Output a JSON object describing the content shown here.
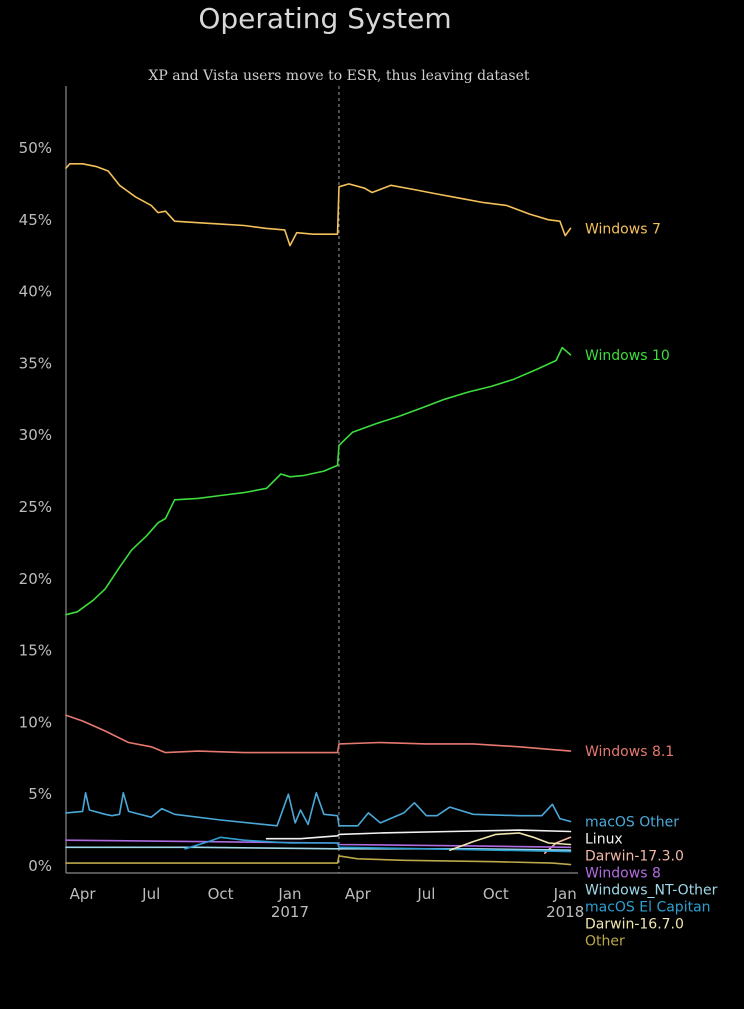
{
  "chart_data": {
    "type": "line",
    "title": "Operating System",
    "subtitle": "",
    "xlabel": "",
    "ylabel": "",
    "ylim": [
      0,
      55
    ],
    "xlim": [
      "2016-03-10",
      "2018-01-18"
    ],
    "grid": false,
    "legend": "right-end-labels",
    "y_ticks": [
      0,
      5,
      10,
      15,
      20,
      25,
      30,
      35,
      40,
      45,
      50
    ],
    "y_tick_labels": [
      "0%",
      "5%",
      "10%",
      "15%",
      "20%",
      "25%",
      "30%",
      "35%",
      "40%",
      "45%",
      "50%"
    ],
    "x_ticks": [
      {
        "date": "2016-04-01",
        "label": "Apr",
        "label2": ""
      },
      {
        "date": "2016-07-01",
        "label": "Jul",
        "label2": ""
      },
      {
        "date": "2016-10-01",
        "label": "Oct",
        "label2": ""
      },
      {
        "date": "2017-01-01",
        "label": "Jan",
        "label2": "2017"
      },
      {
        "date": "2017-04-01",
        "label": "Apr",
        "label2": ""
      },
      {
        "date": "2017-07-01",
        "label": "Jul",
        "label2": ""
      },
      {
        "date": "2017-10-01",
        "label": "Oct",
        "label2": ""
      },
      {
        "date": "2018-01-01",
        "label": "Jan",
        "label2": "2018"
      }
    ],
    "annotation": {
      "date": "2017-03-07",
      "text": "XP and Vista users move to ESR, thus leaving dataset"
    },
    "series": [
      {
        "name": "Windows 7",
        "color": "#f3c05a",
        "points": [
          [
            "2016-03-10",
            48.6
          ],
          [
            "2016-03-15",
            48.9
          ],
          [
            "2016-04-01",
            48.9
          ],
          [
            "2016-04-20",
            48.7
          ],
          [
            "2016-05-05",
            48.4
          ],
          [
            "2016-05-20",
            47.4
          ],
          [
            "2016-06-10",
            46.6
          ],
          [
            "2016-07-01",
            46.0
          ],
          [
            "2016-07-10",
            45.5
          ],
          [
            "2016-07-20",
            45.6
          ],
          [
            "2016-08-01",
            44.9
          ],
          [
            "2016-09-01",
            44.8
          ],
          [
            "2016-10-01",
            44.7
          ],
          [
            "2016-11-01",
            44.6
          ],
          [
            "2016-12-01",
            44.4
          ],
          [
            "2016-12-25",
            44.3
          ],
          [
            "2017-01-01",
            43.2
          ],
          [
            "2017-01-10",
            44.1
          ],
          [
            "2017-02-01",
            44.0
          ],
          [
            "2017-03-05",
            44.0
          ],
          [
            "2017-03-07",
            47.3
          ],
          [
            "2017-03-20",
            47.5
          ],
          [
            "2017-04-10",
            47.2
          ],
          [
            "2017-04-20",
            46.9
          ],
          [
            "2017-05-15",
            47.4
          ],
          [
            "2017-06-15",
            47.1
          ],
          [
            "2017-07-15",
            46.8
          ],
          [
            "2017-08-15",
            46.5
          ],
          [
            "2017-09-15",
            46.2
          ],
          [
            "2017-10-15",
            46.0
          ],
          [
            "2017-11-15",
            45.4
          ],
          [
            "2017-12-10",
            45.0
          ],
          [
            "2017-12-25",
            44.9
          ],
          [
            "2018-01-01",
            43.9
          ],
          [
            "2018-01-08",
            44.4
          ]
        ]
      },
      {
        "name": "Windows 10",
        "color": "#3ddc3d",
        "points": [
          [
            "2016-03-10",
            17.5
          ],
          [
            "2016-03-25",
            17.7
          ],
          [
            "2016-04-15",
            18.5
          ],
          [
            "2016-05-01",
            19.3
          ],
          [
            "2016-05-20",
            20.8
          ],
          [
            "2016-06-05",
            22.0
          ],
          [
            "2016-06-25",
            23.0
          ],
          [
            "2016-07-10",
            23.9
          ],
          [
            "2016-07-20",
            24.2
          ],
          [
            "2016-08-01",
            25.5
          ],
          [
            "2016-09-01",
            25.6
          ],
          [
            "2016-10-01",
            25.8
          ],
          [
            "2016-11-01",
            26.0
          ],
          [
            "2016-12-01",
            26.3
          ],
          [
            "2016-12-20",
            27.3
          ],
          [
            "2017-01-01",
            27.1
          ],
          [
            "2017-01-20",
            27.2
          ],
          [
            "2017-02-15",
            27.5
          ],
          [
            "2017-03-05",
            27.9
          ],
          [
            "2017-03-07",
            29.3
          ],
          [
            "2017-03-25",
            30.2
          ],
          [
            "2017-04-25",
            30.8
          ],
          [
            "2017-05-25",
            31.3
          ],
          [
            "2017-06-25",
            31.9
          ],
          [
            "2017-07-25",
            32.5
          ],
          [
            "2017-08-25",
            33.0
          ],
          [
            "2017-09-25",
            33.4
          ],
          [
            "2017-10-25",
            33.9
          ],
          [
            "2017-11-25",
            34.6
          ],
          [
            "2017-12-20",
            35.2
          ],
          [
            "2017-12-28",
            36.1
          ],
          [
            "2018-01-08",
            35.6
          ]
        ]
      },
      {
        "name": "Windows 8.1",
        "color": "#e6796f",
        "points": [
          [
            "2016-03-10",
            10.5
          ],
          [
            "2016-04-01",
            10.1
          ],
          [
            "2016-05-01",
            9.4
          ],
          [
            "2016-06-01",
            8.6
          ],
          [
            "2016-07-01",
            8.3
          ],
          [
            "2016-07-20",
            7.9
          ],
          [
            "2016-09-01",
            8.0
          ],
          [
            "2016-11-01",
            7.9
          ],
          [
            "2017-01-01",
            7.9
          ],
          [
            "2017-03-05",
            7.9
          ],
          [
            "2017-03-07",
            8.5
          ],
          [
            "2017-05-01",
            8.6
          ],
          [
            "2017-07-01",
            8.5
          ],
          [
            "2017-09-01",
            8.5
          ],
          [
            "2017-11-01",
            8.3
          ],
          [
            "2018-01-08",
            8.0
          ]
        ]
      },
      {
        "name": "macOS Other",
        "color": "#4aa8d8",
        "points": [
          [
            "2016-03-10",
            3.7
          ],
          [
            "2016-04-01",
            3.8
          ],
          [
            "2016-04-05",
            5.1
          ],
          [
            "2016-04-10",
            3.9
          ],
          [
            "2016-05-01",
            3.6
          ],
          [
            "2016-05-10",
            3.5
          ],
          [
            "2016-05-20",
            3.6
          ],
          [
            "2016-05-25",
            5.1
          ],
          [
            "2016-06-01",
            3.8
          ],
          [
            "2016-07-01",
            3.4
          ],
          [
            "2016-07-15",
            4.0
          ],
          [
            "2016-08-01",
            3.6
          ],
          [
            "2016-10-01",
            3.2
          ],
          [
            "2016-12-15",
            2.8
          ],
          [
            "2016-12-30",
            5.0
          ],
          [
            "2017-01-08",
            3.0
          ],
          [
            "2017-01-15",
            3.9
          ],
          [
            "2017-01-25",
            2.9
          ],
          [
            "2017-02-05",
            5.1
          ],
          [
            "2017-02-15",
            3.6
          ],
          [
            "2017-03-05",
            3.5
          ],
          [
            "2017-03-07",
            2.8
          ],
          [
            "2017-04-01",
            2.8
          ],
          [
            "2017-04-15",
            3.7
          ],
          [
            "2017-05-01",
            3.0
          ],
          [
            "2017-06-01",
            3.7
          ],
          [
            "2017-06-15",
            4.4
          ],
          [
            "2017-07-01",
            3.5
          ],
          [
            "2017-07-15",
            3.5
          ],
          [
            "2017-08-01",
            4.1
          ],
          [
            "2017-09-01",
            3.6
          ],
          [
            "2017-11-01",
            3.5
          ],
          [
            "2017-12-01",
            3.5
          ],
          [
            "2017-12-15",
            4.3
          ],
          [
            "2017-12-25",
            3.3
          ],
          [
            "2018-01-08",
            3.1
          ]
        ]
      },
      {
        "name": "Linux",
        "color": "#f2f2f2",
        "points": [
          [
            "2016-12-01",
            1.9
          ],
          [
            "2017-01-15",
            1.9
          ],
          [
            "2017-03-05",
            2.1
          ],
          [
            "2017-03-07",
            2.2
          ],
          [
            "2017-05-01",
            2.3
          ],
          [
            "2017-08-01",
            2.4
          ],
          [
            "2017-11-01",
            2.5
          ],
          [
            "2018-01-08",
            2.4
          ]
        ]
      },
      {
        "name": "Darwin-17.3.0",
        "color": "#f2b8a8",
        "points": [
          [
            "2017-12-05",
            0.9
          ],
          [
            "2017-12-20",
            1.6
          ],
          [
            "2018-01-08",
            2.0
          ]
        ]
      },
      {
        "name": "Windows 8",
        "color": "#b06be0",
        "points": [
          [
            "2016-03-10",
            1.8
          ],
          [
            "2016-09-01",
            1.7
          ],
          [
            "2017-03-05",
            1.6
          ],
          [
            "2017-03-07",
            1.5
          ],
          [
            "2017-09-01",
            1.4
          ],
          [
            "2018-01-08",
            1.3
          ]
        ]
      },
      {
        "name": "Windows_NT-Other",
        "color": "#9fd8e8",
        "points": [
          [
            "2016-03-10",
            1.3
          ],
          [
            "2016-09-01",
            1.3
          ],
          [
            "2017-03-05",
            1.2
          ],
          [
            "2017-09-01",
            1.2
          ],
          [
            "2018-01-08",
            1.1
          ]
        ]
      },
      {
        "name": "macOS El Capitan",
        "color": "#2e9fd0",
        "points": [
          [
            "2016-08-15",
            1.2
          ],
          [
            "2016-09-15",
            1.7
          ],
          [
            "2016-10-01",
            2.0
          ],
          [
            "2016-11-01",
            1.8
          ],
          [
            "2017-01-01",
            1.6
          ],
          [
            "2017-03-05",
            1.6
          ],
          [
            "2017-03-07",
            1.3
          ],
          [
            "2017-07-01",
            1.2
          ],
          [
            "2018-01-08",
            1.0
          ]
        ]
      },
      {
        "name": "Darwin-16.7.0",
        "color": "#f0e6b0",
        "points": [
          [
            "2017-08-01",
            1.1
          ],
          [
            "2017-09-01",
            1.7
          ],
          [
            "2017-10-01",
            2.2
          ],
          [
            "2017-11-01",
            2.3
          ],
          [
            "2017-11-20",
            2.0
          ],
          [
            "2017-12-10",
            1.6
          ],
          [
            "2018-01-08",
            1.5
          ]
        ]
      },
      {
        "name": "Other",
        "color": "#bba84a",
        "points": [
          [
            "2016-03-10",
            0.2
          ],
          [
            "2017-03-05",
            0.2
          ],
          [
            "2017-03-07",
            0.7
          ],
          [
            "2017-04-01",
            0.5
          ],
          [
            "2017-06-01",
            0.4
          ],
          [
            "2017-10-01",
            0.3
          ],
          [
            "2017-12-15",
            0.2
          ],
          [
            "2018-01-08",
            0.1
          ]
        ]
      }
    ]
  }
}
